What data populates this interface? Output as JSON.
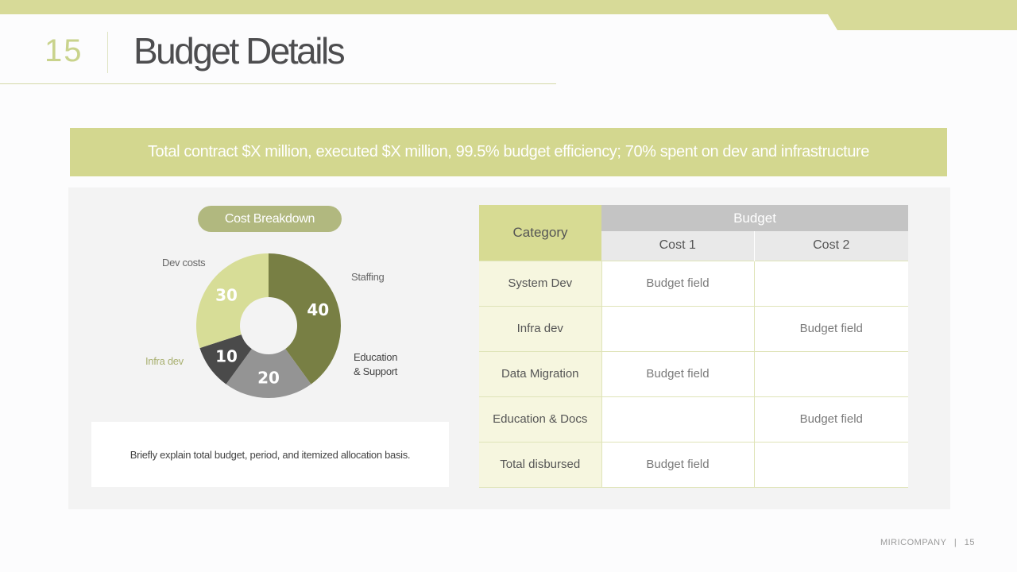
{
  "header": {
    "slide_number": "15",
    "title": "Budget Details"
  },
  "banner": {
    "text": "Total contract $X million, executed $X million, 99.5% budget efficiency; 70% spent on dev and infrastructure"
  },
  "chart_section": {
    "pill_label": "Cost Breakdown",
    "labels": {
      "dev_costs": "Dev costs",
      "staffing": "Staffing",
      "education_line1": "Education",
      "education_line2": "& Support",
      "infra_dev": "Infra dev"
    },
    "note": "Briefly explain total budget, period, and itemized allocation basis."
  },
  "chart_data": {
    "type": "pie",
    "title": "Cost Breakdown",
    "slices": [
      {
        "label": "Dev costs",
        "value": 40,
        "color": "#787f44"
      },
      {
        "label": "Staffing",
        "value": 20,
        "color": "#949494"
      },
      {
        "label": "Education & Support",
        "value": 10,
        "color": "#4a4a4a"
      },
      {
        "label": "Infra dev",
        "value": 30,
        "color": "#d7dd97"
      }
    ],
    "data_labels": [
      "40",
      "20",
      "10",
      "30"
    ]
  },
  "table": {
    "category_header": "Category",
    "budget_header": "Budget",
    "cost1_header": "Cost 1",
    "cost2_header": "Cost 2",
    "rows": [
      {
        "category": "System Dev",
        "cost1": "Budget field",
        "cost2": ""
      },
      {
        "category": "Infra dev",
        "cost1": "",
        "cost2": "Budget field"
      },
      {
        "category": "Data Migration",
        "cost1": "Budget field",
        "cost2": ""
      },
      {
        "category": "Education & Docs",
        "cost1": "",
        "cost2": "Budget field"
      },
      {
        "category": "Total disbursed",
        "cost1": "Budget field",
        "cost2": ""
      }
    ]
  },
  "footer": {
    "company": "MIRICOMPANY",
    "separator": "|",
    "page": "15"
  },
  "colors": {
    "accent": "#d3d78f",
    "accent_dark": "#b1b87f",
    "slide_number": "#c9d38c"
  }
}
